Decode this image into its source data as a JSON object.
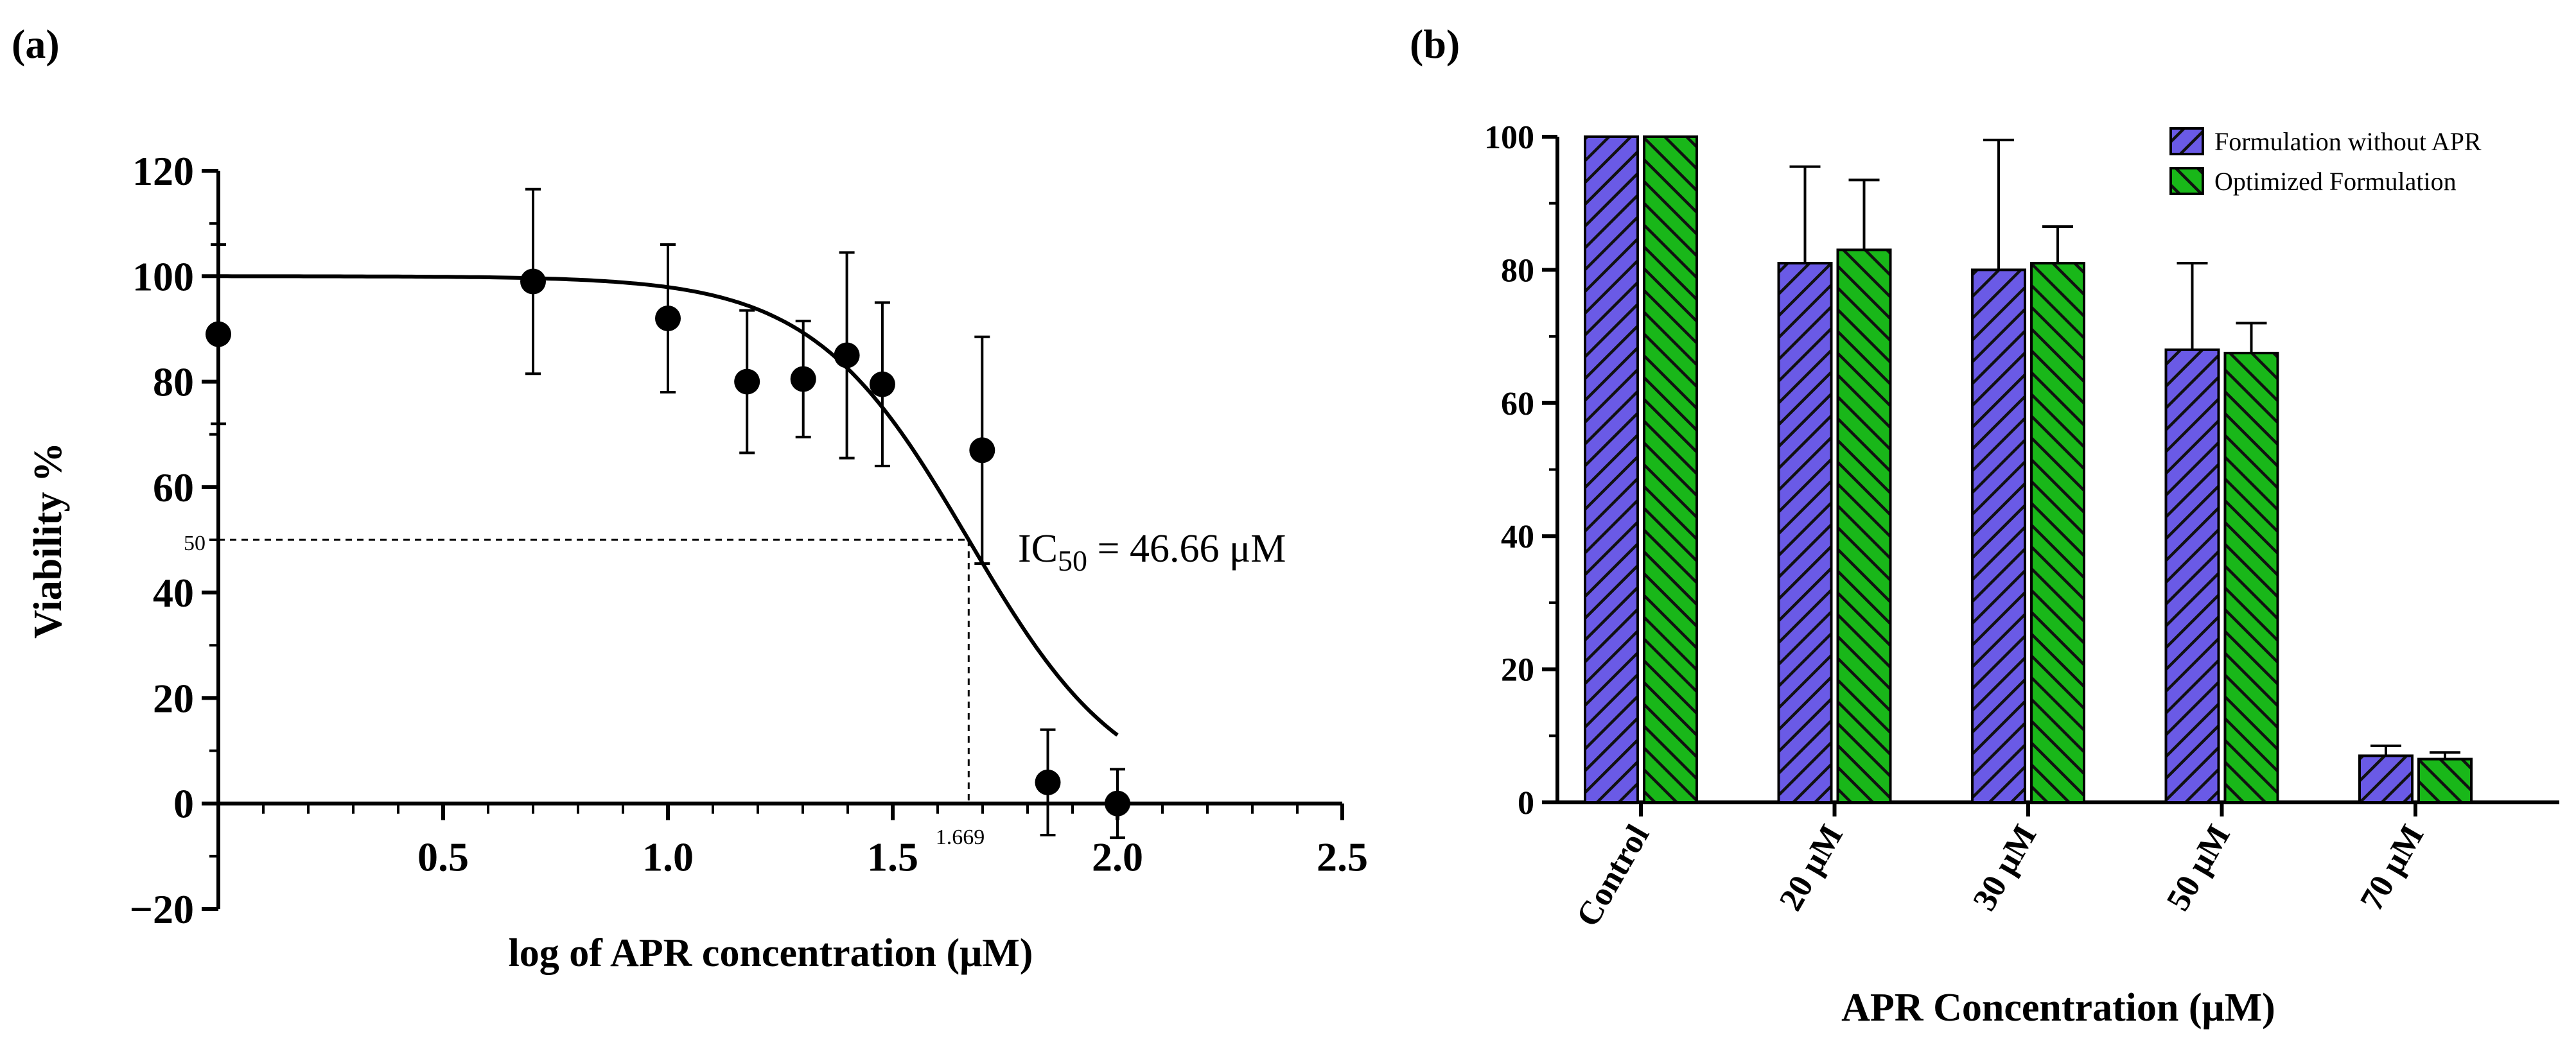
{
  "colors": {
    "formulation_without": "#6a5ae6",
    "optimized": "#19b719",
    "hatch": "#111111"
  },
  "chart_data": [
    {
      "type": "scatter",
      "panel": "(a)",
      "title": "",
      "xlabel": "log of APR concentration (μM)",
      "ylabel": "Viability %",
      "xlim": [
        0,
        2.5
      ],
      "ylim": [
        -20,
        120
      ],
      "xticks": [
        "0.5",
        "1.0",
        "1.5",
        "2.0",
        "2.5"
      ],
      "yticks": [
        "−20",
        "0",
        "20",
        "40",
        "60",
        "80",
        "100",
        "120"
      ],
      "points": [
        {
          "x": 0.0,
          "y": 89,
          "err": 17
        },
        {
          "x": 0.7,
          "y": 99,
          "err": 17.5
        },
        {
          "x": 1.0,
          "y": 92,
          "err": 14
        },
        {
          "x": 1.176,
          "y": 80,
          "err": 13.5
        },
        {
          "x": 1.301,
          "y": 80.5,
          "err": 11
        },
        {
          "x": 1.398,
          "y": 85,
          "err": 19.5
        },
        {
          "x": 1.477,
          "y": 79.5,
          "err": 15.5
        },
        {
          "x": 1.699,
          "y": 67,
          "err": 21.5
        },
        {
          "x": 1.845,
          "y": 4,
          "err": 10
        },
        {
          "x": 2.0,
          "y": 0,
          "err": 6.5
        }
      ],
      "fit": {
        "top": 100,
        "bottom": 0,
        "log_ic50": 1.669,
        "hill": -2.5,
        "x_end": 2.0
      },
      "reference": {
        "y_label": "50",
        "x_label": "1.669"
      },
      "annotation": {
        "prefix": "IC",
        "subscript": "50",
        "suffix": " = 46.66 μM"
      }
    },
    {
      "type": "bar",
      "panel": "(b)",
      "xlabel": "APR Concentration (μM)",
      "ylabel": "",
      "ylim": [
        0,
        100
      ],
      "yticks": [
        "0",
        "20",
        "40",
        "60",
        "80",
        "100"
      ],
      "categories": [
        "Control",
        "20 μM",
        "30 μM",
        "50 μM",
        "70 μM"
      ],
      "series": [
        {
          "name": "Formulation without APR",
          "values": [
            100,
            81,
            80,
            68,
            7
          ],
          "errors": [
            0,
            14.5,
            19.5,
            13,
            1.5
          ]
        },
        {
          "name": "Optimized Formulation",
          "values": [
            100,
            83,
            81,
            67.5,
            6.5
          ],
          "errors": [
            0,
            10.5,
            5.5,
            4.5,
            1
          ]
        }
      ],
      "legend_position": "top-right"
    }
  ]
}
